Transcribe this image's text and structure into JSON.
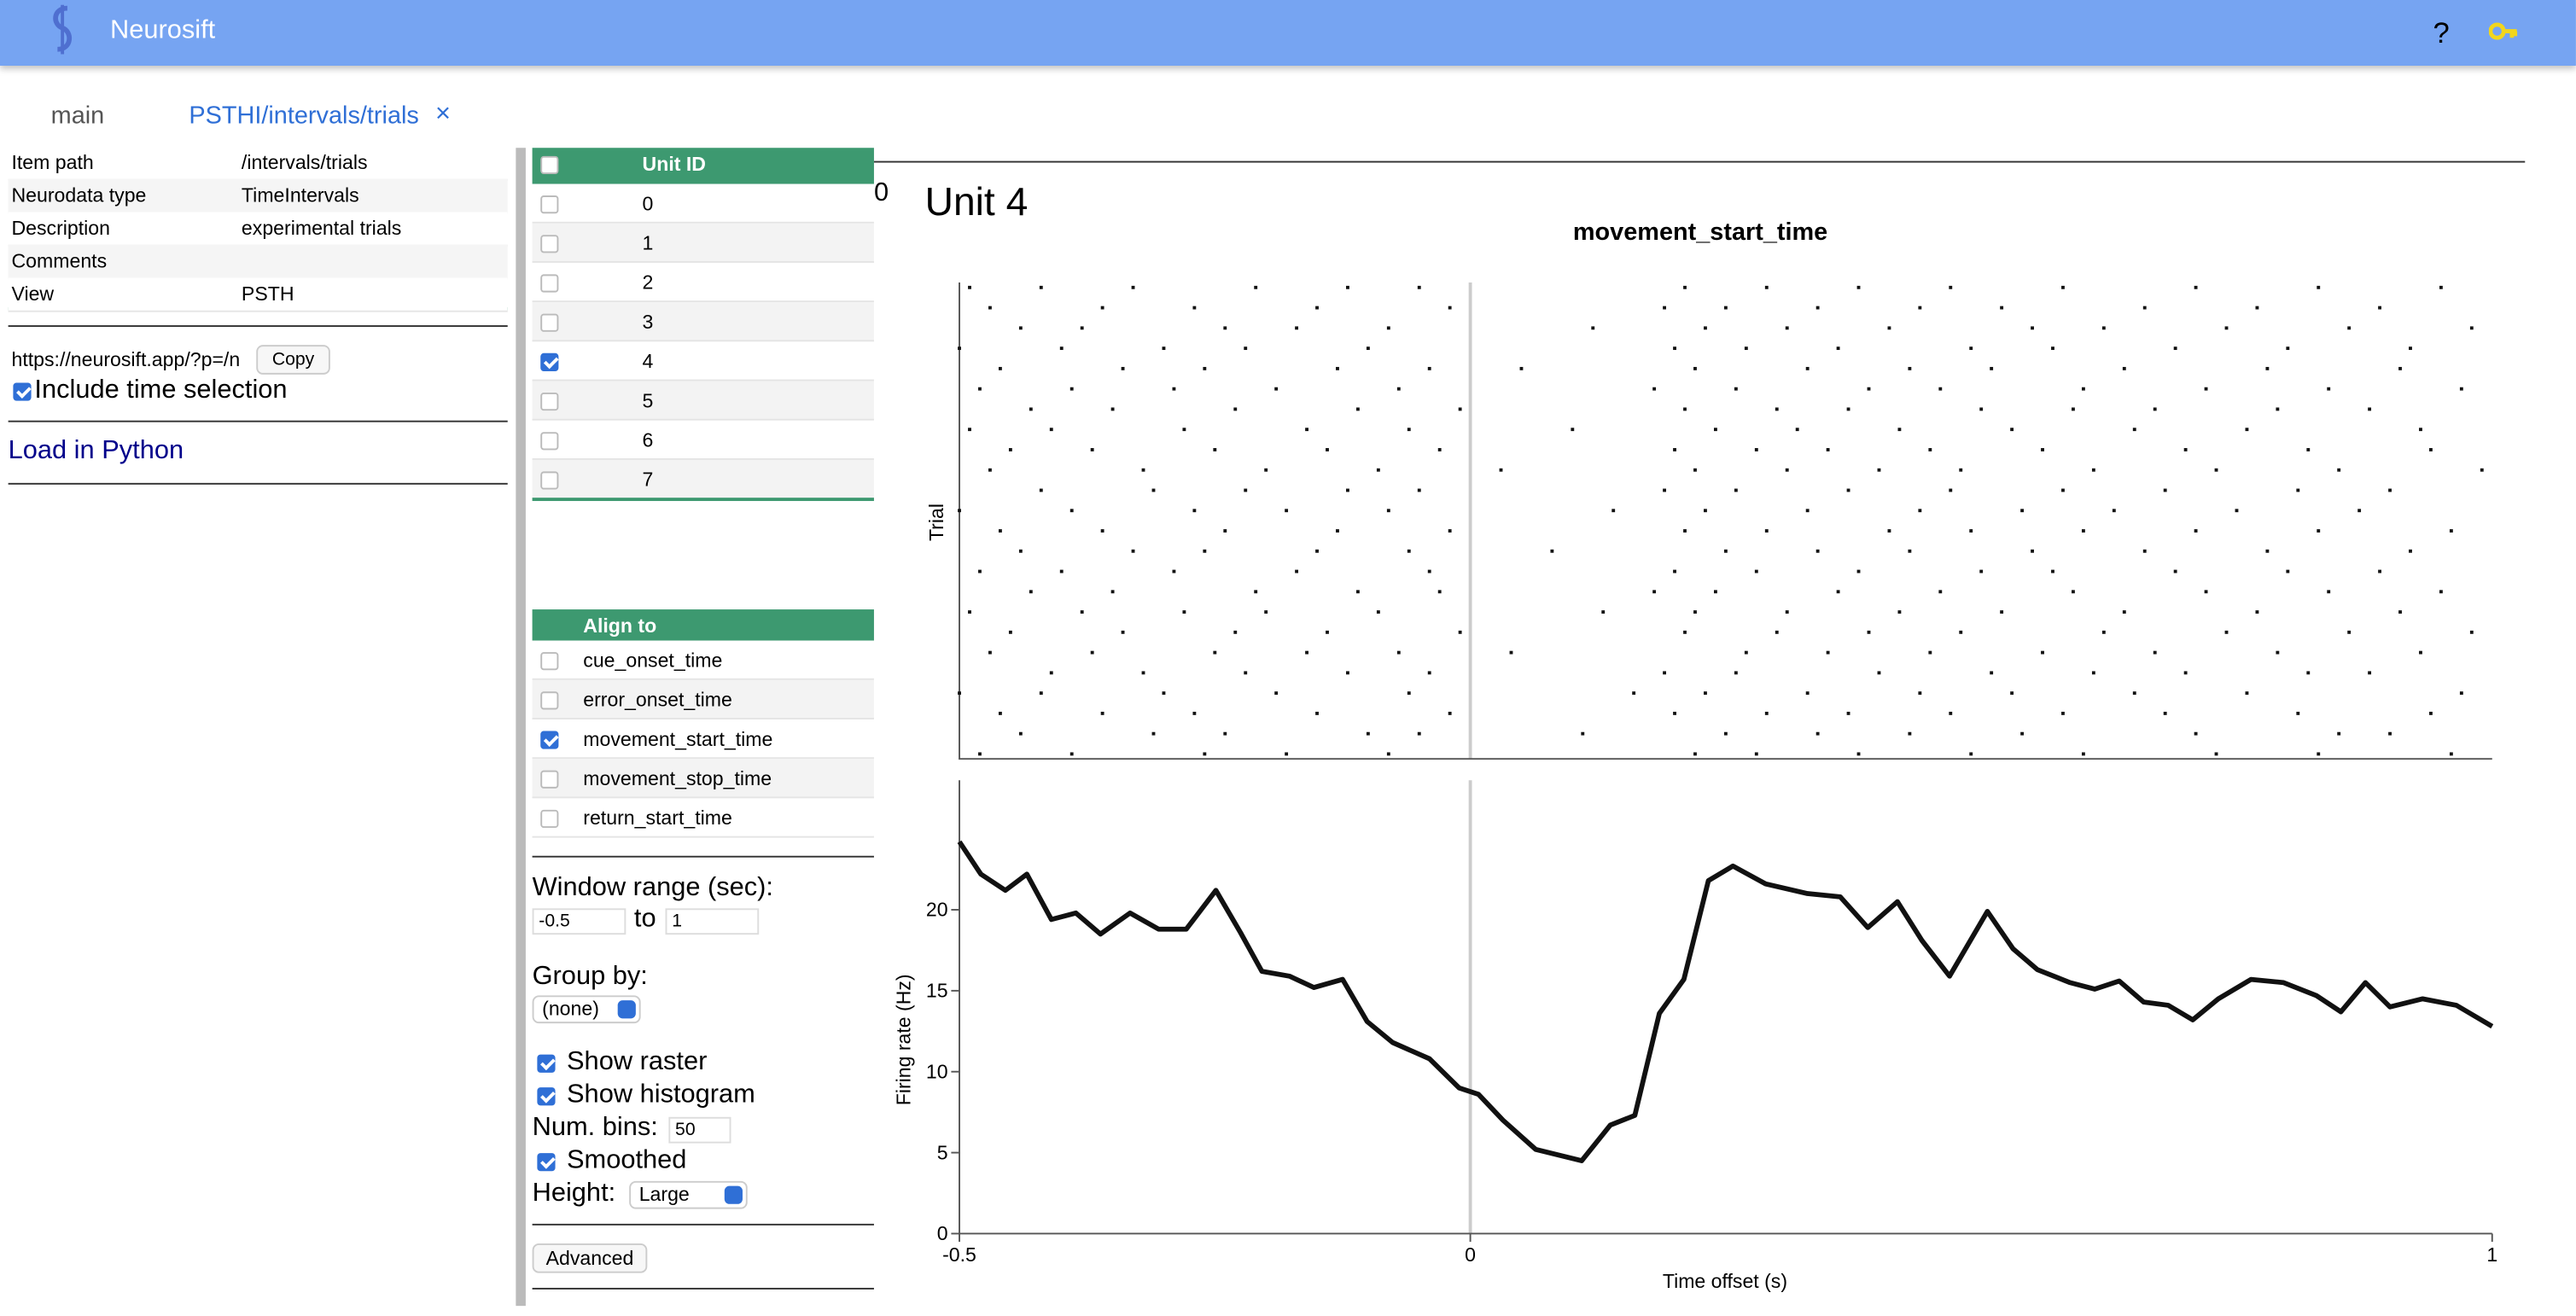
{
  "header": {
    "title": "Neurosift",
    "help": "?"
  },
  "tabs": [
    "main",
    "PSTHI/intervals/trials"
  ],
  "info": [
    [
      "Item path",
      "/intervals/trials"
    ],
    [
      "Neurodata type",
      "TimeIntervals"
    ],
    [
      "Description",
      "experimental trials"
    ],
    [
      "Comments",
      ""
    ],
    [
      "View",
      "PSTH"
    ]
  ],
  "url": "https://neurosift.app/?p=/n",
  "copy": "Copy",
  "include_time": "Include time selection",
  "load_python": "Load in Python",
  "units": {
    "header": "Unit ID",
    "ids": [
      0,
      1,
      2,
      3,
      4,
      5,
      6,
      7
    ],
    "selected_index": 4
  },
  "align": {
    "header": "Align to",
    "options": [
      "cue_onset_time",
      "error_onset_time",
      "movement_start_time",
      "movement_stop_time",
      "return_start_time"
    ],
    "selected_index": 2
  },
  "controls": {
    "window_label": "Window range (sec):",
    "window_start": -0.5,
    "to": "to",
    "window_end": 1,
    "group_label": "Group by:",
    "group_value": "(none)",
    "show_raster": "Show raster",
    "show_histogram": "Show histogram",
    "num_bins_label": "Num. bins:",
    "num_bins": 50,
    "smoothed": "Smoothed",
    "height_label": "Height:",
    "height_value": "Large",
    "advanced": "Advanced"
  },
  "stray": 0,
  "chart_data": {
    "type": "psth",
    "unit_title": "Unit 4",
    "title": "movement_start_time",
    "raster_ylabel": "Trial",
    "ylabel": "Firing rate (Hz)",
    "xlabel": "Time offset (s)",
    "color": "#111111",
    "xlim": [
      -0.5,
      1
    ],
    "xticks": [
      -0.5,
      0,
      1
    ],
    "ylim": [
      0,
      28
    ],
    "yticks": [
      0,
      5,
      10,
      15,
      20
    ],
    "x": [
      -0.5,
      -0.479,
      -0.455,
      -0.434,
      -0.41,
      -0.386,
      -0.362,
      -0.333,
      -0.305,
      -0.278,
      -0.249,
      -0.225,
      -0.204,
      -0.177,
      -0.153,
      -0.125,
      -0.101,
      -0.076,
      -0.04,
      -0.011,
      0.008,
      0.032,
      0.064,
      0.109,
      0.137,
      0.161,
      0.185,
      0.209,
      0.233,
      0.257,
      0.289,
      0.33,
      0.362,
      0.389,
      0.418,
      0.442,
      0.469,
      0.506,
      0.531,
      0.555,
      0.587,
      0.611,
      0.635,
      0.659,
      0.683,
      0.707,
      0.732,
      0.764,
      0.796,
      0.828,
      0.852,
      0.876,
      0.9,
      0.932,
      0.965,
      1.0
    ],
    "values": [
      24.2,
      22.2,
      21.2,
      22.2,
      19.4,
      19.8,
      18.5,
      19.8,
      18.8,
      18.8,
      21.2,
      18.6,
      16.2,
      15.9,
      15.2,
      15.7,
      13.1,
      11.8,
      10.8,
      9.0,
      8.6,
      7.0,
      5.2,
      4.5,
      6.7,
      7.3,
      13.6,
      15.7,
      21.8,
      22.7,
      21.6,
      21.0,
      20.8,
      18.9,
      20.5,
      18.1,
      15.9,
      19.9,
      17.6,
      16.3,
      15.5,
      15.1,
      15.6,
      14.3,
      14.1,
      13.2,
      14.5,
      15.7,
      15.5,
      14.7,
      13.7,
      15.5,
      14.0,
      14.5,
      14.1,
      12.8
    ],
    "raster": [
      [
        -0.49,
        -0.42,
        -0.33,
        -0.21,
        -0.12,
        -0.05,
        0.21,
        0.29,
        0.38,
        0.47,
        0.58,
        0.71,
        0.83,
        0.95
      ],
      [
        -0.47,
        -0.36,
        -0.27,
        -0.15,
        -0.02,
        0.19,
        0.25,
        0.34,
        0.44,
        0.52,
        0.66,
        0.77,
        0.89
      ],
      [
        -0.44,
        -0.38,
        -0.24,
        -0.17,
        -0.08,
        0.12,
        0.23,
        0.31,
        0.41,
        0.55,
        0.62,
        0.74,
        0.86,
        0.98
      ],
      [
        -0.5,
        -0.4,
        -0.3,
        -0.22,
        -0.1,
        0.2,
        0.27,
        0.36,
        0.49,
        0.57,
        0.69,
        0.8,
        0.92
      ],
      [
        -0.46,
        -0.34,
        -0.26,
        -0.13,
        -0.04,
        0.05,
        0.22,
        0.33,
        0.43,
        0.51,
        0.64,
        0.78,
        0.91
      ],
      [
        -0.48,
        -0.39,
        -0.29,
        -0.19,
        -0.07,
        0.18,
        0.26,
        0.39,
        0.46,
        0.6,
        0.72,
        0.84,
        0.97
      ],
      [
        -0.43,
        -0.35,
        -0.23,
        -0.11,
        -0.01,
        0.21,
        0.3,
        0.37,
        0.5,
        0.59,
        0.67,
        0.79,
        0.88
      ],
      [
        -0.49,
        -0.41,
        -0.28,
        -0.16,
        -0.06,
        0.1,
        0.24,
        0.32,
        0.42,
        0.53,
        0.65,
        0.76,
        0.93
      ],
      [
        -0.45,
        -0.37,
        -0.25,
        -0.14,
        -0.03,
        0.2,
        0.28,
        0.35,
        0.45,
        0.56,
        0.7,
        0.82,
        0.94
      ],
      [
        -0.47,
        -0.32,
        -0.2,
        -0.09,
        0.03,
        0.22,
        0.31,
        0.4,
        0.48,
        0.61,
        0.73,
        0.85,
        0.99
      ],
      [
        -0.42,
        -0.31,
        -0.22,
        -0.12,
        -0.05,
        0.19,
        0.26,
        0.37,
        0.47,
        0.58,
        0.68,
        0.81,
        0.9
      ],
      [
        -0.5,
        -0.39,
        -0.27,
        -0.18,
        -0.08,
        0.14,
        0.23,
        0.33,
        0.44,
        0.54,
        0.63,
        0.75,
        0.87
      ],
      [
        -0.46,
        -0.36,
        -0.24,
        -0.13,
        -0.02,
        0.21,
        0.29,
        0.41,
        0.49,
        0.6,
        0.71,
        0.83,
        0.96
      ],
      [
        -0.44,
        -0.33,
        -0.26,
        -0.15,
        -0.06,
        0.08,
        0.25,
        0.34,
        0.43,
        0.55,
        0.66,
        0.78,
        0.92
      ],
      [
        -0.48,
        -0.4,
        -0.29,
        -0.17,
        -0.04,
        0.2,
        0.28,
        0.38,
        0.5,
        0.57,
        0.69,
        0.8,
        0.89
      ],
      [
        -0.43,
        -0.35,
        -0.21,
        -0.11,
        -0.03,
        0.18,
        0.24,
        0.36,
        0.46,
        0.59,
        0.72,
        0.84,
        0.95
      ],
      [
        -0.49,
        -0.38,
        -0.28,
        -0.2,
        -0.09,
        0.13,
        0.22,
        0.31,
        0.42,
        0.52,
        0.64,
        0.77,
        0.91
      ],
      [
        -0.45,
        -0.34,
        -0.23,
        -0.14,
        -0.01,
        0.21,
        0.3,
        0.39,
        0.48,
        0.62,
        0.74,
        0.86,
        0.98
      ],
      [
        -0.47,
        -0.37,
        -0.25,
        -0.16,
        -0.07,
        0.04,
        0.27,
        0.35,
        0.45,
        0.56,
        0.67,
        0.79,
        0.93
      ],
      [
        -0.41,
        -0.32,
        -0.22,
        -0.12,
        -0.04,
        0.19,
        0.26,
        0.4,
        0.51,
        0.61,
        0.7,
        0.82,
        0.88
      ],
      [
        -0.5,
        -0.42,
        -0.3,
        -0.19,
        -0.06,
        0.16,
        0.23,
        0.33,
        0.44,
        0.53,
        0.65,
        0.76,
        0.97
      ],
      [
        -0.46,
        -0.36,
        -0.27,
        -0.15,
        -0.02,
        0.2,
        0.29,
        0.37,
        0.47,
        0.58,
        0.68,
        0.81,
        0.94
      ],
      [
        -0.44,
        -0.31,
        -0.24,
        -0.1,
        -0.05,
        0.11,
        0.25,
        0.34,
        0.43,
        0.54,
        0.71,
        0.85,
        0.9
      ],
      [
        -0.48,
        -0.39,
        -0.26,
        -0.18,
        -0.08,
        0.22,
        0.28,
        0.38,
        0.49,
        0.6,
        0.73,
        0.83,
        0.96
      ]
    ]
  }
}
